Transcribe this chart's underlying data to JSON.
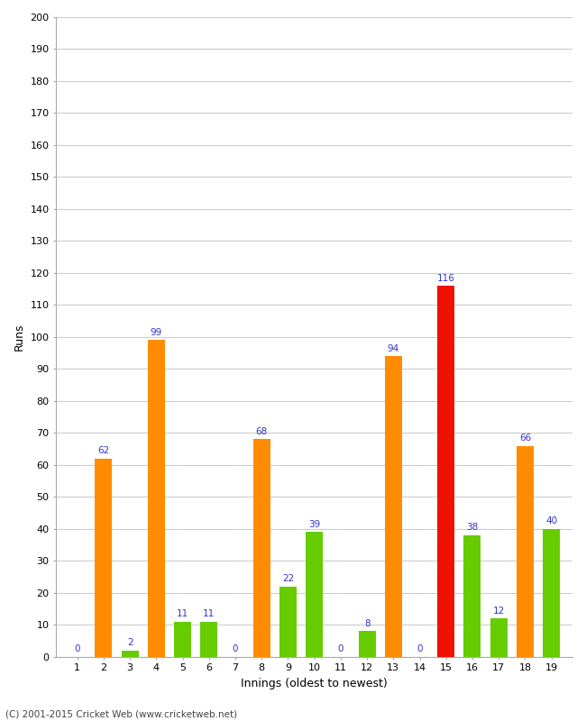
{
  "xlabel": "Innings (oldest to newest)",
  "ylabel": "Runs",
  "footer": "(C) 2001-2015 Cricket Web (www.cricketweb.net)",
  "innings": [
    1,
    2,
    3,
    4,
    5,
    6,
    7,
    8,
    9,
    10,
    11,
    12,
    13,
    14,
    15,
    16,
    17,
    18,
    19
  ],
  "values": [
    0,
    62,
    2,
    99,
    11,
    11,
    0,
    68,
    22,
    39,
    0,
    8,
    94,
    0,
    116,
    38,
    12,
    66,
    40
  ],
  "colors": [
    "#ff8c00",
    "#ff8c00",
    "#66cc00",
    "#ff8c00",
    "#66cc00",
    "#66cc00",
    "#ff8c00",
    "#ff8c00",
    "#66cc00",
    "#66cc00",
    "#66cc00",
    "#66cc00",
    "#ff8c00",
    "#ff8c00",
    "#ee1100",
    "#66cc00",
    "#66cc00",
    "#ff8c00",
    "#66cc00"
  ],
  "ylim": [
    0,
    200
  ],
  "yticks": [
    0,
    10,
    20,
    30,
    40,
    50,
    60,
    70,
    80,
    90,
    100,
    110,
    120,
    130,
    140,
    150,
    160,
    170,
    180,
    190,
    200
  ],
  "label_color": "#3333cc",
  "background_color": "#ffffff",
  "grid_color": "#cccccc",
  "bar_width": 0.65
}
